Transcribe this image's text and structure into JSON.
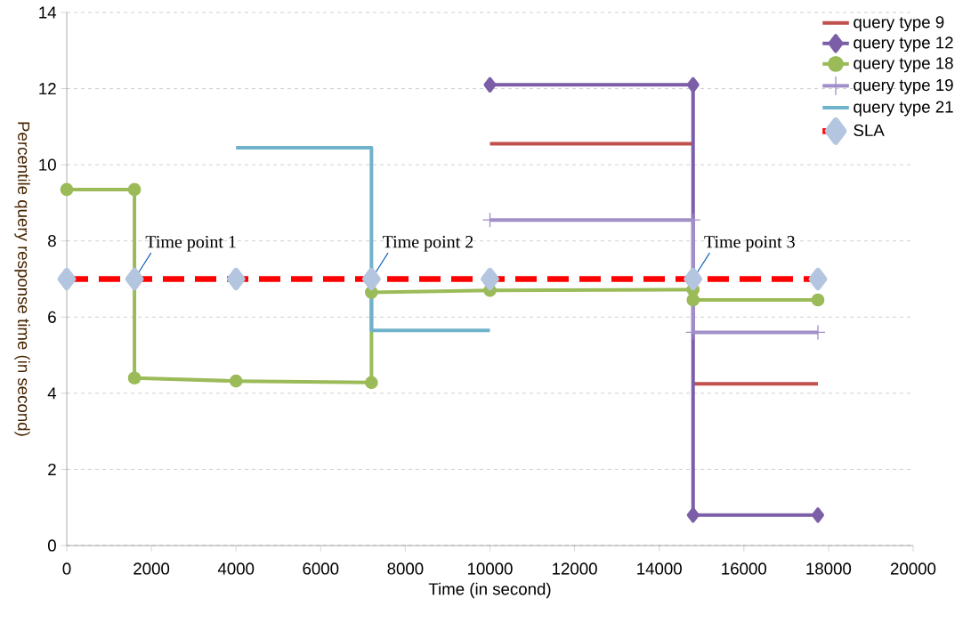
{
  "chart_data": {
    "type": "line",
    "xlabel": "Time  (in second)",
    "ylabel": "Percentile query response time  (in second)",
    "xlim": [
      0,
      20000
    ],
    "xticks": [
      0,
      2000,
      4000,
      6000,
      8000,
      10000,
      12000,
      14000,
      16000,
      18000,
      20000
    ],
    "ylim": [
      0,
      14
    ],
    "yticks": [
      0,
      2,
      4,
      6,
      8,
      10,
      12,
      14
    ],
    "grid": "y",
    "legend": "top right",
    "series": [
      {
        "name": "query type 9",
        "color": "#c0504d",
        "marker": "none",
        "x": [
          10000,
          14800,
          null,
          14800,
          17750
        ],
        "values": [
          10.55,
          10.55,
          null,
          4.25,
          4.25
        ]
      },
      {
        "name": "query type 12",
        "color": "#7b5ea7",
        "marker": "diamond",
        "x": [
          10000,
          14800,
          14800,
          17750
        ],
        "values": [
          12.1,
          12.1,
          0.8,
          0.8
        ]
      },
      {
        "name": "query type 18",
        "color": "#9bbb59",
        "marker": "circle",
        "x": [
          0,
          1600,
          1600,
          4000,
          7200,
          7200,
          10000,
          14800,
          14800,
          17750
        ],
        "values": [
          9.35,
          9.35,
          4.4,
          4.32,
          4.28,
          6.65,
          6.7,
          6.72,
          6.45,
          6.45
        ]
      },
      {
        "name": "query type 19",
        "color": "#a08fc8",
        "marker": "cross",
        "x": [
          10000,
          14800,
          14800,
          17750
        ],
        "values": [
          8.55,
          8.55,
          5.6,
          5.6
        ]
      },
      {
        "name": "query type 21",
        "color": "#6fb3cb",
        "marker": "none",
        "x": [
          4000,
          7200,
          7200,
          10000
        ],
        "values": [
          10.45,
          10.45,
          5.65,
          5.65
        ]
      },
      {
        "name": "SLA",
        "color": "#ff0000",
        "marker": "diamond",
        "line_style": "dashed",
        "colors": [
          "#b4c5e0",
          "#b4c5e0",
          "#b4c5e0",
          "#b4c5e0",
          "#b4c5e0",
          "#b4c5e0",
          "#b4c5e0"
        ],
        "x": [
          0,
          1600,
          4000,
          7200,
          10000,
          14800,
          17750
        ],
        "values": [
          7,
          7,
          7,
          7,
          7,
          7,
          7
        ]
      }
    ],
    "annotations": [
      {
        "text": "Time point 1",
        "x": 1600,
        "y": 7
      },
      {
        "text": "Time point 2",
        "x": 7200,
        "y": 7
      },
      {
        "text": "Time point 3",
        "x": 14800,
        "y": 7
      }
    ]
  }
}
